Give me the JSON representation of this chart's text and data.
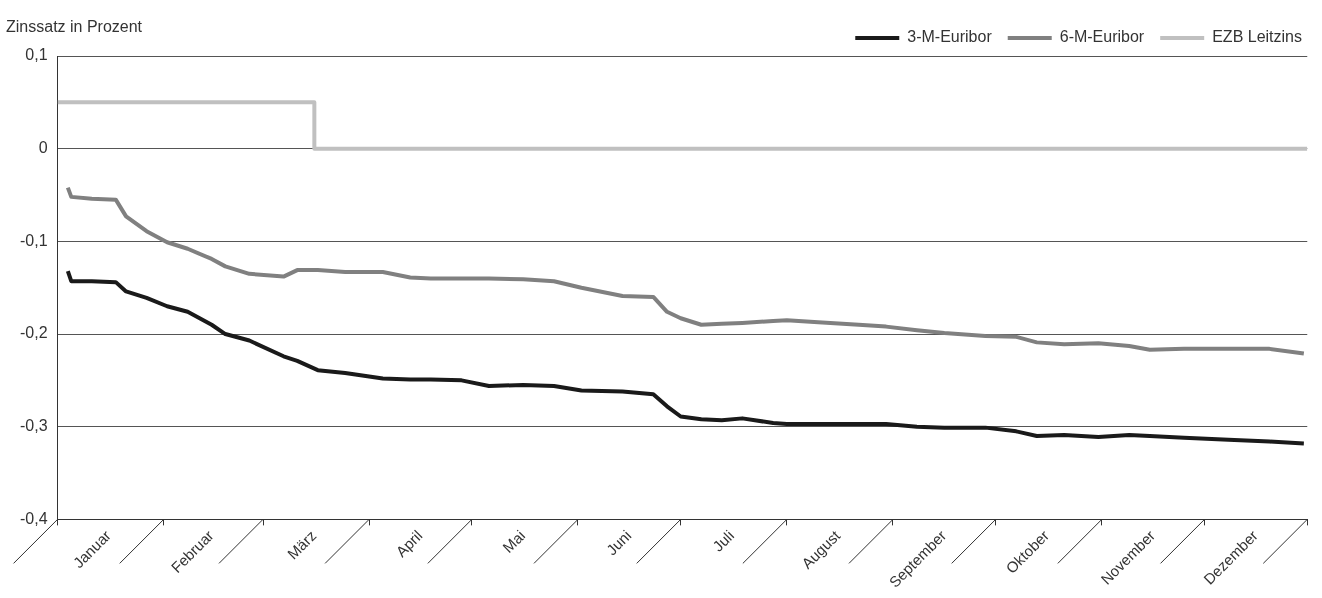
{
  "chart_data": {
    "type": "line",
    "ylabel": "Zinssatz in Prozent",
    "x": [
      "--01-04",
      "--01-05",
      "--01-11",
      "--01-18",
      "--01-21",
      "--01-27",
      "--02-02",
      "--02-08",
      "--02-15",
      "--02-19",
      "--02-26",
      "--03-07",
      "--03-11",
      "--03-17",
      "--03-25",
      "--04-05",
      "--04-13",
      "--04-19",
      "--04-28",
      "--05-06",
      "--05-16",
      "--05-25",
      "--06-02",
      "--06-14",
      "--06-23",
      "--06-27",
      "--07-01",
      "--07-07",
      "--07-13",
      "--07-19",
      "--07-28",
      "--08-01",
      "--08-09",
      "--08-22",
      "--08-30",
      "--09-08",
      "--09-16",
      "--09-28",
      "--10-07",
      "--10-13",
      "--10-21",
      "--10-31",
      "--11-09",
      "--11-15",
      "--11-25",
      "--12-08",
      "--12-20",
      "--12-30"
    ],
    "series": [
      {
        "name": "3-M-Euribor",
        "color": "#1a1a1a",
        "values": [
          -0.132,
          -0.143,
          -0.143,
          -0.144,
          -0.154,
          -0.161,
          -0.17,
          -0.176,
          -0.19,
          -0.2,
          -0.207,
          -0.224,
          -0.229,
          -0.239,
          -0.242,
          -0.248,
          -0.249,
          -0.249,
          -0.25,
          -0.256,
          -0.255,
          -0.256,
          -0.261,
          -0.262,
          -0.265,
          -0.278,
          -0.289,
          -0.292,
          -0.293,
          -0.291,
          -0.296,
          -0.297,
          -0.297,
          -0.297,
          -0.297,
          -0.3,
          -0.301,
          -0.301,
          -0.305,
          -0.31,
          -0.309,
          -0.311,
          -0.309,
          -0.31,
          -0.312,
          -0.314,
          -0.316,
          -0.318
        ]
      },
      {
        "name": "6-M-Euribor",
        "color": "#808080",
        "values": [
          -0.042,
          -0.052,
          -0.054,
          -0.055,
          -0.073,
          -0.089,
          -0.101,
          -0.108,
          -0.119,
          -0.127,
          -0.135,
          -0.138,
          -0.131,
          -0.131,
          -0.133,
          -0.133,
          -0.139,
          -0.14,
          -0.14,
          -0.14,
          -0.141,
          -0.143,
          -0.15,
          -0.159,
          -0.16,
          -0.176,
          -0.183,
          -0.19,
          -0.189,
          -0.188,
          -0.186,
          -0.185,
          -0.187,
          -0.19,
          -0.192,
          -0.196,
          -0.199,
          -0.202,
          -0.203,
          -0.209,
          -0.211,
          -0.21,
          -0.213,
          -0.217,
          -0.216,
          -0.216,
          -0.216,
          -0.221
        ]
      },
      {
        "name": "EZB Leitzins",
        "type": "step",
        "color": "#c0c0c0",
        "x": [
          "--01-01",
          "--03-16",
          "--12-31"
        ],
        "values": [
          0.05,
          0,
          0
        ]
      }
    ],
    "xlim": [
      "--01-01",
      "--12-31"
    ],
    "xticks": [
      {
        "value": "--01-01",
        "label": null
      },
      {
        "value": "--01-16",
        "label": "Januar"
      },
      {
        "value": "--02-01",
        "label": null
      },
      {
        "value": "--02-15",
        "label": "Februar"
      },
      {
        "value": "--03-01",
        "label": null
      },
      {
        "value": "--03-16",
        "label": "März"
      },
      {
        "value": "--04-01",
        "label": null
      },
      {
        "value": "--04-16",
        "label": "April"
      },
      {
        "value": "--05-01",
        "label": null
      },
      {
        "value": "--05-16",
        "label": "Mai"
      },
      {
        "value": "--06-01",
        "label": null
      },
      {
        "value": "--06-16",
        "label": "Juni"
      },
      {
        "value": "--07-01",
        "label": null
      },
      {
        "value": "--07-16",
        "label": "Juli"
      },
      {
        "value": "--08-01",
        "label": null
      },
      {
        "value": "--08-16",
        "label": "August"
      },
      {
        "value": "--09-01",
        "label": null
      },
      {
        "value": "--09-16",
        "label": "September"
      },
      {
        "value": "--10-01",
        "label": null
      },
      {
        "value": "--10-16",
        "label": "Oktober"
      },
      {
        "value": "--11-01",
        "label": null
      },
      {
        "value": "--11-16",
        "label": "November"
      },
      {
        "value": "--12-01",
        "label": null
      },
      {
        "value": "--12-16",
        "label": "Dezember"
      },
      {
        "value": "--12-31",
        "label": null
      }
    ],
    "ylim": [
      -0.4,
      0.1
    ],
    "yticks": [
      {
        "value": 0.1,
        "label": "0,1"
      },
      0,
      {
        "value": -0.1,
        "label": "-0,1"
      },
      {
        "value": -0.2,
        "label": "-0,2"
      },
      {
        "value": -0.3,
        "label": "-0,3"
      },
      {
        "value": -0.4,
        "label": "-0,4"
      }
    ],
    "grid": "y",
    "legend": "top right",
    "marker": "none",
    "line_style": "solid"
  }
}
